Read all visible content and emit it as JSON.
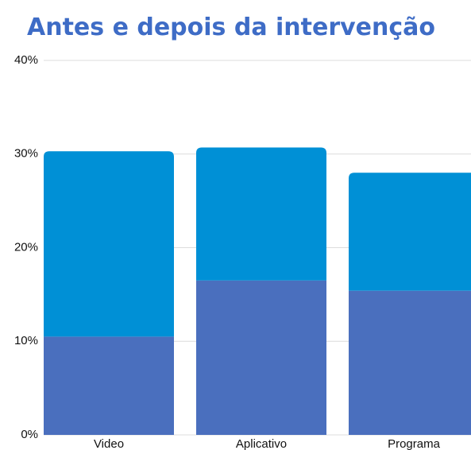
{
  "chart_data": {
    "type": "bar",
    "stacked": true,
    "title": "Antes e depois da intervenção",
    "categories": [
      "Video",
      "Aplicativo",
      "Programa"
    ],
    "series": [
      {
        "color": "#4a6fbe",
        "values": [
          10.5,
          16.5,
          15.4
        ]
      },
      {
        "color": "#0090d6",
        "values": [
          19.8,
          14.2,
          12.6
        ]
      }
    ],
    "ylim": [
      0,
      40
    ],
    "yticks": [
      {
        "value": 0,
        "label": "0%"
      },
      {
        "value": 10,
        "label": "10%"
      },
      {
        "value": 20,
        "label": "20%"
      },
      {
        "value": 30,
        "label": "30%"
      },
      {
        "value": 40,
        "label": "40%"
      }
    ],
    "grid": true
  }
}
